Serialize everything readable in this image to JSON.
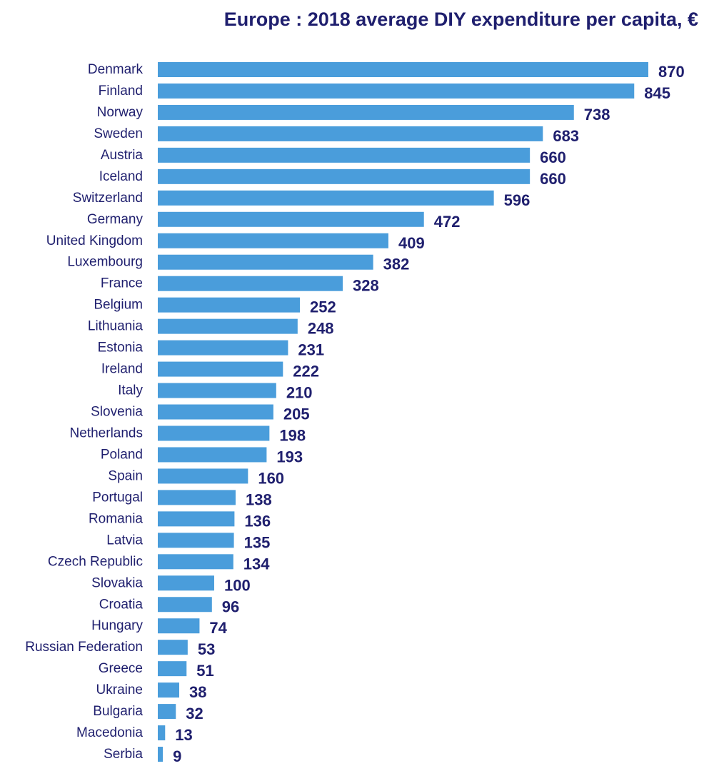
{
  "chart_data": {
    "type": "bar",
    "orientation": "horizontal",
    "title": "Europe : 2018 average DIY expenditure per capita, €",
    "xlabel": "",
    "ylabel": "",
    "xlim": [
      0,
      870
    ],
    "grid": false,
    "legend": "none",
    "bar_color": "#4a9ddb",
    "label_color": "#1f1f6e",
    "categories": [
      "Denmark",
      "Finland",
      "Norway",
      "Sweden",
      "Austria",
      "Iceland",
      "Switzerland",
      "Germany",
      "United Kingdom",
      "Luxembourg",
      "France",
      "Belgium",
      "Lithuania",
      "Estonia",
      "Ireland",
      "Italy",
      "Slovenia",
      "Netherlands",
      "Poland",
      "Spain",
      "Portugal",
      "Romania",
      "Latvia",
      "Czech Republic",
      "Slovakia",
      "Croatia",
      "Hungary",
      "Russian Federation",
      "Greece",
      "Ukraine",
      "Bulgaria",
      "Macedonia",
      "Serbia"
    ],
    "values": [
      870,
      845,
      738,
      683,
      660,
      660,
      596,
      472,
      409,
      382,
      328,
      252,
      248,
      231,
      222,
      210,
      205,
      198,
      193,
      160,
      138,
      136,
      135,
      134,
      100,
      96,
      74,
      53,
      51,
      38,
      32,
      13,
      9
    ]
  }
}
